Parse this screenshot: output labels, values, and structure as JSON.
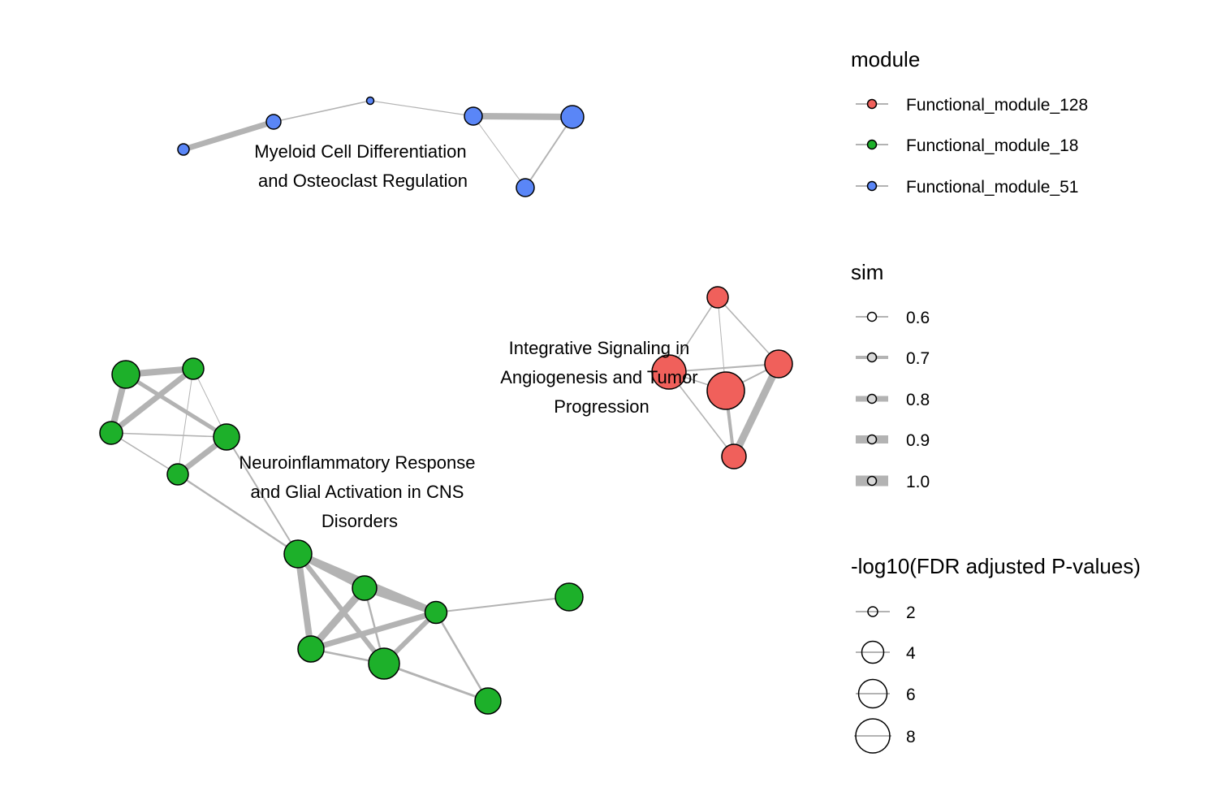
{
  "modules": [
    {
      "id": "m51",
      "label_lines": [
        "Myeloid Cell Differentiation",
        "and Osteoclast Regulation"
      ],
      "color": "#5a86f7"
    },
    {
      "id": "m128",
      "label_lines": [
        "Integrative Signaling in",
        "Angiogenesis and Tumor",
        "Progression"
      ],
      "color": "#f0605b"
    },
    {
      "id": "m18",
      "label_lines": [
        "Neuroinflammatory Response",
        "and Glial Activation in CNS",
        "Disorders"
      ],
      "color": "#1db02a"
    }
  ],
  "legend": {
    "module": {
      "title": "module",
      "items": [
        {
          "label": "Functional_module_128",
          "color": "#f0605b"
        },
        {
          "label": "Functional_module_18",
          "color": "#1db02a"
        },
        {
          "label": "Functional_module_51",
          "color": "#5a86f7"
        }
      ]
    },
    "sim": {
      "title": "sim",
      "items": [
        {
          "label": "0.6",
          "value": 0.6
        },
        {
          "label": "0.7",
          "value": 0.7
        },
        {
          "label": "0.8",
          "value": 0.8
        },
        {
          "label": "0.9",
          "value": 0.9
        },
        {
          "label": "1.0",
          "value": 1.0
        }
      ]
    },
    "pvalue": {
      "title": "-log10(FDR adjusted P-values)",
      "items": [
        {
          "label": "2",
          "value": 2
        },
        {
          "label": "4",
          "value": 4
        },
        {
          "label": "6",
          "value": 6
        },
        {
          "label": "8",
          "value": 8
        }
      ]
    }
  }
}
